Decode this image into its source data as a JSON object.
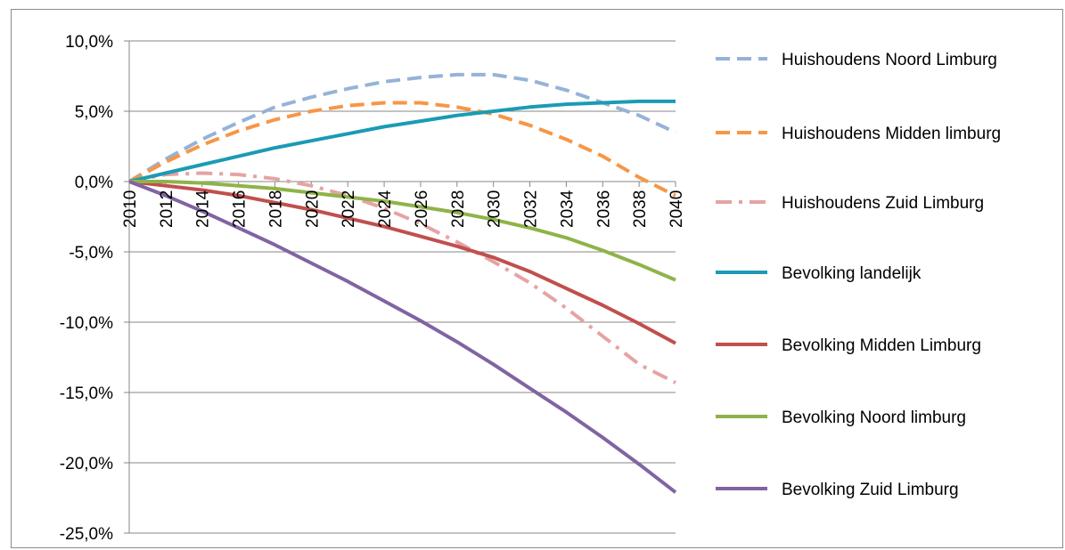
{
  "chart_data": {
    "type": "line",
    "title": "",
    "xlabel": "",
    "ylabel": "",
    "x": [
      2010,
      2012,
      2014,
      2016,
      2018,
      2020,
      2022,
      2024,
      2026,
      2028,
      2030,
      2032,
      2034,
      2036,
      2038,
      2040
    ],
    "x_tick_labels": [
      "2010",
      "2012",
      "2014",
      "2016",
      "2018",
      "2020",
      "2022",
      "2024",
      "2026",
      "2028",
      "2030",
      "2032",
      "2034",
      "2036",
      "2038",
      "2040"
    ],
    "y_tick_labels": [
      "10,0%",
      "5,0%",
      "0,0%",
      "-5,0%",
      "-10,0%",
      "-15,0%",
      "-20,0%",
      "-25,0%"
    ],
    "y_ticks": [
      10,
      5,
      0,
      -5,
      -10,
      -15,
      -20,
      -25
    ],
    "ylim": [
      -25,
      10
    ],
    "xlim": [
      2010,
      2040
    ],
    "grid": "horizontal",
    "legend_position": "right",
    "series": [
      {
        "name": "Huishoudens Noord Limburg",
        "color": "#95b3d7",
        "style": "dashed",
        "values": [
          0.0,
          1.6,
          3.0,
          4.2,
          5.3,
          6.0,
          6.6,
          7.1,
          7.4,
          7.6,
          7.6,
          7.2,
          6.5,
          5.6,
          4.7,
          3.5
        ]
      },
      {
        "name": "Huishoudens Midden limburg",
        "color": "#f79646",
        "style": "dashed",
        "values": [
          0.0,
          1.4,
          2.6,
          3.6,
          4.4,
          5.0,
          5.4,
          5.6,
          5.6,
          5.3,
          4.8,
          4.0,
          3.0,
          1.8,
          0.3,
          -1.0
        ]
      },
      {
        "name": "Huishoudens Zuid Limburg",
        "color": "#e6a3a3",
        "style": "dashdot",
        "values": [
          0.0,
          0.5,
          0.6,
          0.5,
          0.2,
          -0.3,
          -1.0,
          -1.9,
          -3.0,
          -4.3,
          -5.7,
          -7.2,
          -9.0,
          -11.0,
          -13.0,
          -14.3
        ]
      },
      {
        "name": "Bevolking landelijk",
        "color": "#1b9bb4",
        "style": "solid",
        "values": [
          0.0,
          0.6,
          1.2,
          1.8,
          2.4,
          2.9,
          3.4,
          3.9,
          4.3,
          4.7,
          5.0,
          5.3,
          5.5,
          5.6,
          5.7,
          5.7
        ]
      },
      {
        "name": "Bevolking Midden Limburg",
        "color": "#c0504d",
        "style": "solid",
        "values": [
          0.0,
          -0.3,
          -0.6,
          -1.0,
          -1.5,
          -2.0,
          -2.6,
          -3.2,
          -3.9,
          -4.6,
          -5.4,
          -6.4,
          -7.6,
          -8.8,
          -10.1,
          -11.5
        ]
      },
      {
        "name": "Bevolking Noord limburg",
        "color": "#8fb349",
        "style": "solid",
        "values": [
          0.0,
          0.0,
          -0.1,
          -0.3,
          -0.5,
          -0.8,
          -1.1,
          -1.4,
          -1.8,
          -2.2,
          -2.7,
          -3.3,
          -4.0,
          -4.9,
          -5.9,
          -7.0
        ]
      },
      {
        "name": "Bevolking Zuid Limburg",
        "color": "#8064a2",
        "style": "solid",
        "values": [
          0.0,
          -1.0,
          -2.1,
          -3.3,
          -4.5,
          -5.8,
          -7.1,
          -8.5,
          -9.9,
          -11.4,
          -13.0,
          -14.7,
          -16.4,
          -18.2,
          -20.1,
          -22.1
        ]
      }
    ]
  }
}
